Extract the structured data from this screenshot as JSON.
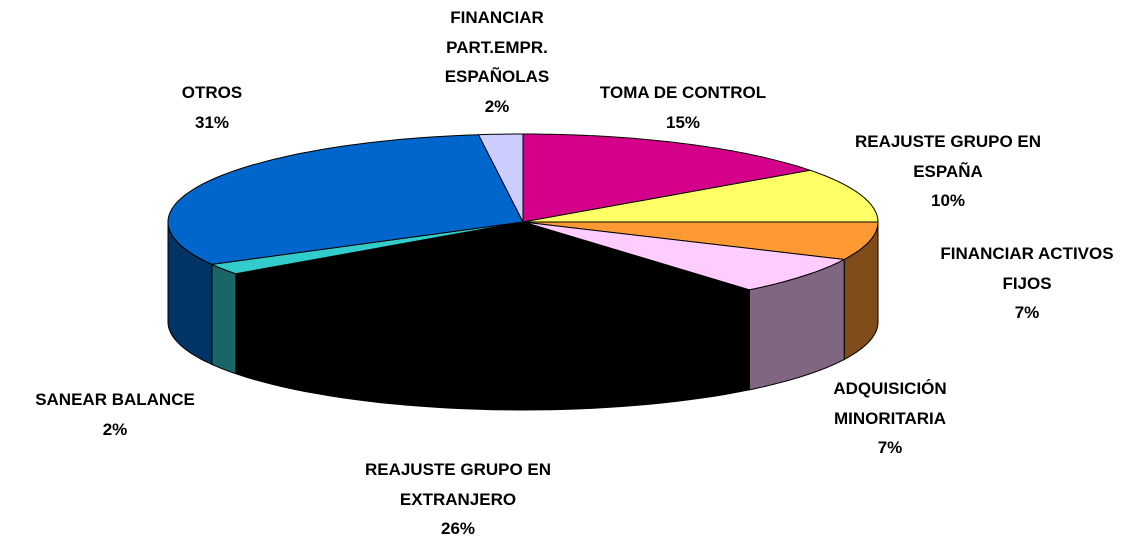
{
  "chart_data": {
    "type": "pie3d",
    "categories": [
      "TOMA DE CONTROL",
      "REAJUSTE GRUPO EN\nESPAÑA",
      "FINANCIAR ACTIVOS\nFIJOS",
      "ADQUISICIÓN\nMINORITARIA",
      "REAJUSTE GRUPO EN\nEXTRANJERO",
      "SANEAR BALANCE",
      "OTROS",
      "FINANCIAR\nPART.EMPR.\nESPAÑOLAS"
    ],
    "values": [
      15,
      10,
      7,
      7,
      26,
      2,
      31,
      2
    ],
    "value_labels": [
      "15%",
      "10%",
      "7%",
      "7%",
      "26%",
      "2%",
      "31%",
      "2%"
    ],
    "colors": [
      "#d4008a",
      "#ffff66",
      "#ff9933",
      "#ffccff",
      "#000000",
      "#33cccc",
      "#0066cc",
      "#ccccff"
    ]
  }
}
